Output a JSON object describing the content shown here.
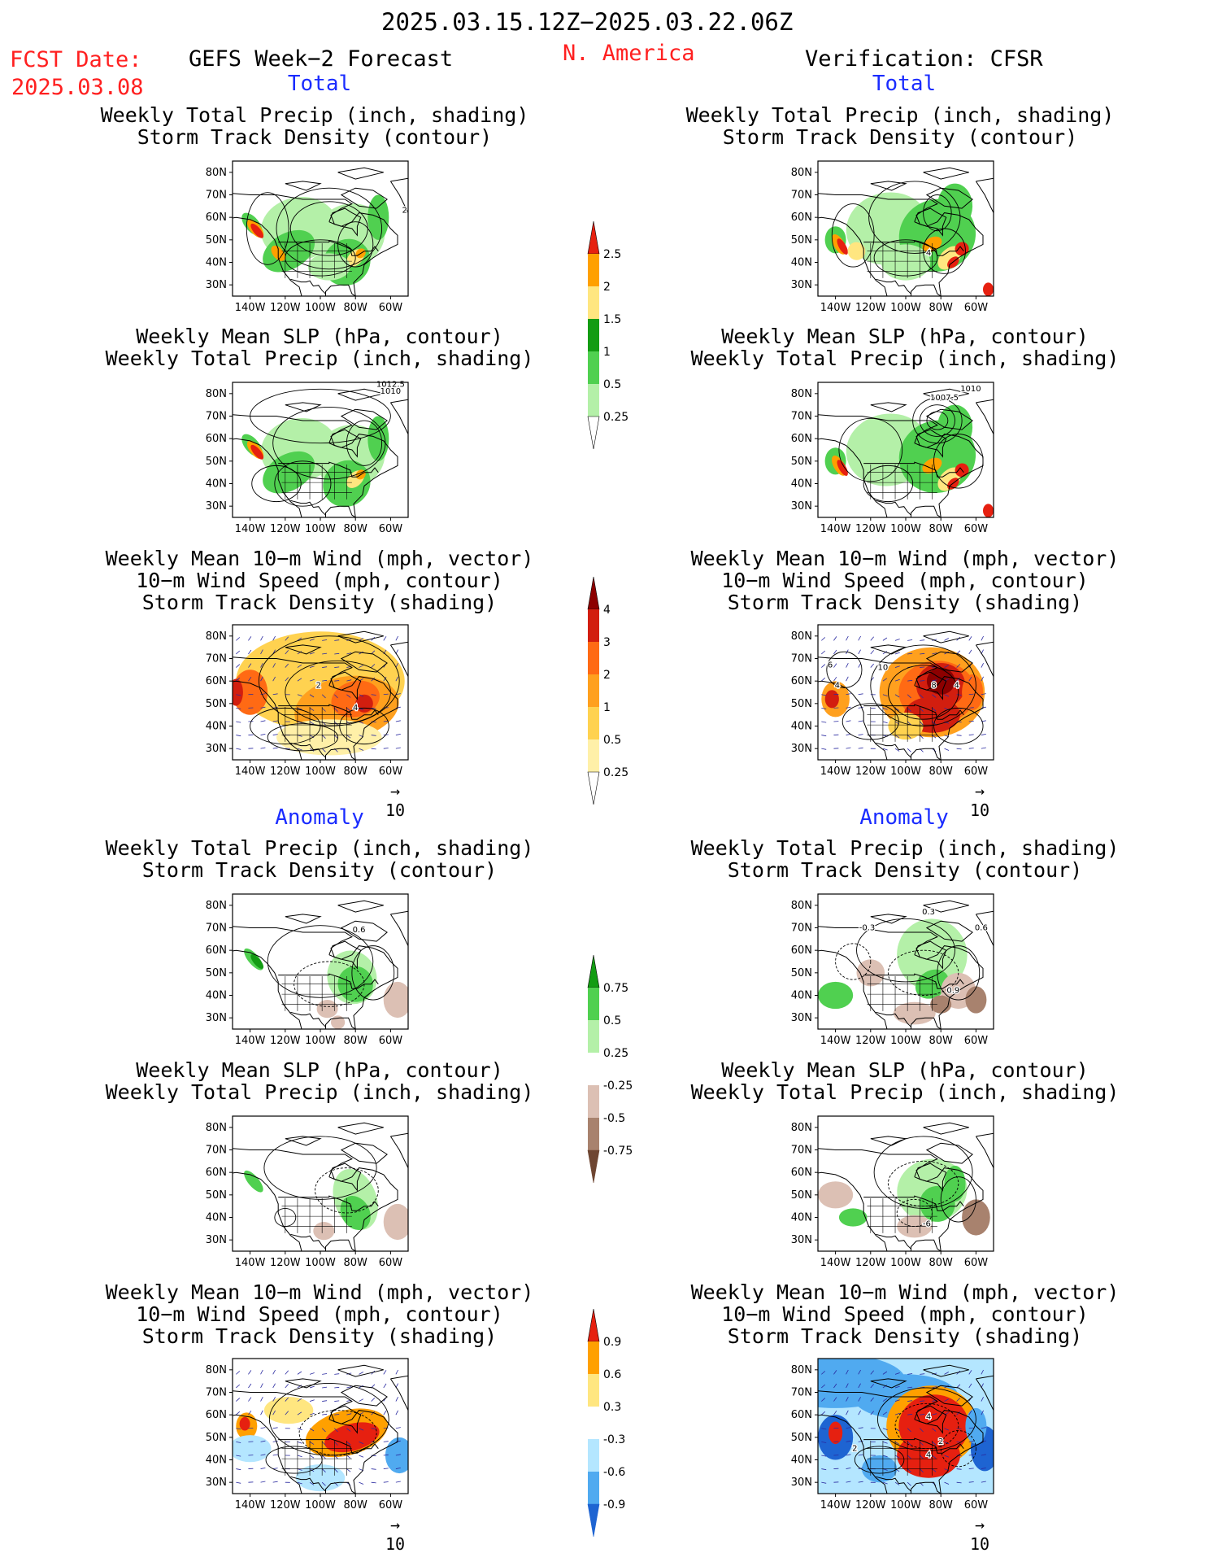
{
  "header": {
    "period": "2025.03.15.12Z−2025.03.22.06Z",
    "fcst_label": "FCST Date:",
    "fcst_date": "2025.03.08",
    "forecast_title": "GEFS Week−2 Forecast",
    "region": "N. America",
    "verification": "Verification: CFSR"
  },
  "sections": {
    "total": "Total",
    "anomaly": "Anomaly"
  },
  "panel_titles": {
    "precip_storm": [
      "Weekly Total Precip (inch, shading)",
      "Storm Track Density (contour)"
    ],
    "slp_precip": [
      "Weekly Mean SLP (hPa, contour)",
      "Weekly Total Precip (inch, shading)"
    ],
    "wind_storm": [
      "Weekly Mean 10−m Wind (mph, vector)",
      "10−m Wind Speed (mph, contour)",
      "Storm Track Density (shading)"
    ]
  },
  "wind_scale_label": "10",
  "colors": {
    "green_lt": "#b4f0a8",
    "green_md": "#50d050",
    "green_dk": "#139c13",
    "yellow": "#ffe680",
    "orange": "#ffa000",
    "red": "#e62010",
    "darkred": "#a00000",
    "brown_lt": "#dcc0b4",
    "brown_md": "#a8826e",
    "brown_dk": "#6e4632",
    "blue_lt": "#b4e6ff",
    "blue_md": "#50aaf0",
    "blue_dk": "#1e64d2",
    "st_lt": "#fff0a8",
    "st_yellow": "#ffd250",
    "st_orange": "#ffa01e",
    "st_redor": "#ff6a14",
    "st_red": "#d21e0f",
    "st_darkred": "#8c0000"
  },
  "chart_data": [
    {
      "type": "heatmap",
      "panel": "gefs-total-precip-storm",
      "map": "N. America",
      "title": [
        "Weekly Total Precip (inch, shading)",
        "Storm Track Density (contour)"
      ],
      "x_ticks": [
        "140W",
        "120W",
        "100W",
        "80W",
        "60W"
      ],
      "y_ticks": [
        "80N",
        "70N",
        "60N",
        "50N",
        "40N",
        "30N"
      ],
      "contour_labels": [
        "2"
      ]
    },
    {
      "type": "heatmap",
      "panel": "cfsr-total-precip-storm",
      "map": "N. America",
      "title": [
        "Weekly Total Precip (inch, shading)",
        "Storm Track Density (contour)"
      ],
      "x_ticks": [
        "140W",
        "120W",
        "100W",
        "80W",
        "60W"
      ],
      "y_ticks": [
        "80N",
        "70N",
        "60N",
        "50N",
        "40N",
        "30N"
      ],
      "contour_labels": [
        "4"
      ]
    },
    {
      "type": "heatmap",
      "panel": "gefs-total-slp-precip",
      "map": "N. America",
      "title": [
        "Weekly Mean SLP (hPa, contour)",
        "Weekly Total Precip (inch, shading)"
      ],
      "x_ticks": [
        "140W",
        "120W",
        "100W",
        "80W",
        "60W"
      ],
      "y_ticks": [
        "80N",
        "70N",
        "60N",
        "50N",
        "40N",
        "30N"
      ],
      "contour_labels": [
        "1012.5",
        "1010"
      ]
    },
    {
      "type": "heatmap",
      "panel": "cfsr-total-slp-precip",
      "map": "N. America",
      "title": [
        "Weekly Mean SLP (hPa, contour)",
        "Weekly Total Precip (inch, shading)"
      ],
      "x_ticks": [
        "140W",
        "120W",
        "100W",
        "80W",
        "60W"
      ],
      "y_ticks": [
        "80N",
        "70N",
        "60N",
        "50N",
        "40N",
        "30N"
      ],
      "contour_labels": [
        "1007.5",
        "1010"
      ]
    },
    {
      "type": "heatmap",
      "panel": "gefs-total-wind-storm",
      "map": "N. America",
      "title": [
        "Weekly Mean 10−m Wind (mph, vector)",
        "10−m Wind Speed (mph, contour)",
        "Storm Track Density (shading)"
      ],
      "x_ticks": [
        "140W",
        "120W",
        "100W",
        "80W",
        "60W"
      ],
      "y_ticks": [
        "80N",
        "70N",
        "60N",
        "50N",
        "40N",
        "30N"
      ],
      "contour_labels": [
        "2",
        "4"
      ]
    },
    {
      "type": "heatmap",
      "panel": "cfsr-total-wind-storm",
      "map": "N. America",
      "title": [
        "Weekly Mean 10−m Wind (mph, vector)",
        "10−m Wind Speed (mph, contour)",
        "Storm Track Density (shading)"
      ],
      "x_ticks": [
        "140W",
        "120W",
        "100W",
        "80W",
        "60W"
      ],
      "y_ticks": [
        "80N",
        "70N",
        "60N",
        "50N",
        "40N",
        "30N"
      ],
      "contour_labels": [
        "4",
        "8",
        "4",
        "10",
        "6"
      ]
    },
    {
      "type": "heatmap",
      "panel": "gefs-anom-precip-storm",
      "map": "N. America",
      "title": [
        "Weekly Total Precip (inch, shading)",
        "Storm Track Density (contour)"
      ],
      "x_ticks": [
        "140W",
        "120W",
        "100W",
        "80W",
        "60W"
      ],
      "y_ticks": [
        "80N",
        "70N",
        "60N",
        "50N",
        "40N",
        "30N"
      ],
      "contour_labels": [
        "0.6"
      ]
    },
    {
      "type": "heatmap",
      "panel": "cfsr-anom-precip-storm",
      "map": "N. America",
      "title": [
        "Weekly Total Precip (inch, shading)",
        "Storm Track Density (contour)"
      ],
      "x_ticks": [
        "140W",
        "120W",
        "100W",
        "80W",
        "60W"
      ],
      "y_ticks": [
        "80N",
        "70N",
        "60N",
        "50N",
        "40N",
        "30N"
      ],
      "contour_labels": [
        "-0.3",
        "0.3",
        "0.6",
        "0.9"
      ]
    },
    {
      "type": "heatmap",
      "panel": "gefs-anom-slp-precip",
      "map": "N. America",
      "title": [
        "Weekly Mean SLP (hPa, contour)",
        "Weekly Total Precip (inch, shading)"
      ],
      "x_ticks": [
        "140W",
        "120W",
        "100W",
        "80W",
        "60W"
      ],
      "y_ticks": [
        "80N",
        "70N",
        "60N",
        "50N",
        "40N",
        "30N"
      ],
      "contour_labels": []
    },
    {
      "type": "heatmap",
      "panel": "cfsr-anom-slp-precip",
      "map": "N. America",
      "title": [
        "Weekly Mean SLP (hPa, contour)",
        "Weekly Total Precip (inch, shading)"
      ],
      "x_ticks": [
        "140W",
        "120W",
        "100W",
        "80W",
        "60W"
      ],
      "y_ticks": [
        "80N",
        "70N",
        "60N",
        "50N",
        "40N",
        "30N"
      ],
      "contour_labels": [
        "-6"
      ]
    },
    {
      "type": "heatmap",
      "panel": "gefs-anom-wind-storm",
      "map": "N. America",
      "title": [
        "Weekly Mean 10−m Wind (mph, vector)",
        "10−m Wind Speed (mph, contour)",
        "Storm Track Density (shading)"
      ],
      "x_ticks": [
        "140W",
        "120W",
        "100W",
        "80W",
        "60W"
      ],
      "y_ticks": [
        "80N",
        "70N",
        "60N",
        "50N",
        "40N",
        "30N"
      ],
      "contour_labels": []
    },
    {
      "type": "heatmap",
      "panel": "cfsr-anom-wind-storm",
      "map": "N. America",
      "title": [
        "Weekly Mean 10−m Wind (mph, vector)",
        "10−m Wind Speed (mph, contour)",
        "Storm Track Density (shading)"
      ],
      "x_ticks": [
        "140W",
        "120W",
        "100W",
        "80W",
        "60W"
      ],
      "y_ticks": [
        "80N",
        "70N",
        "60N",
        "50N",
        "40N",
        "30N"
      ],
      "contour_labels": [
        "4",
        "2",
        "4",
        "2"
      ]
    },
    {
      "type": "colorbar",
      "name": "total_precip",
      "levels": [
        "0.25",
        "0.5",
        "1",
        "1.5",
        "2",
        "2.5"
      ],
      "colors": [
        "#ffffff",
        "#b4f0a8",
        "#50d050",
        "#139c13",
        "#ffe680",
        "#ffa000",
        "#e62010"
      ]
    },
    {
      "type": "colorbar",
      "name": "total_storm_density",
      "levels": [
        "0.25",
        "0.5",
        "1",
        "2",
        "3",
        "4"
      ],
      "colors": [
        "#ffffff",
        "#fff0a8",
        "#ffd250",
        "#ffa01e",
        "#ff6a14",
        "#d21e0f",
        "#8c0000"
      ]
    },
    {
      "type": "colorbar",
      "name": "precip_anomaly",
      "levels": [
        "-0.75",
        "-0.5",
        "-0.25",
        "0.25",
        "0.5",
        "0.75"
      ],
      "colors": [
        "#6e4632",
        "#a8826e",
        "#dcc0b4",
        "#ffffff",
        "#b4f0a8",
        "#50d050",
        "#139c13"
      ]
    },
    {
      "type": "colorbar",
      "name": "storm_density_anomaly",
      "levels": [
        "-0.9",
        "-0.6",
        "-0.3",
        "0.3",
        "0.6",
        "0.9"
      ],
      "colors": [
        "#1e64d2",
        "#50aaf0",
        "#b4e6ff",
        "#ffffff",
        "#ffe680",
        "#ffa000",
        "#e62010"
      ]
    }
  ]
}
